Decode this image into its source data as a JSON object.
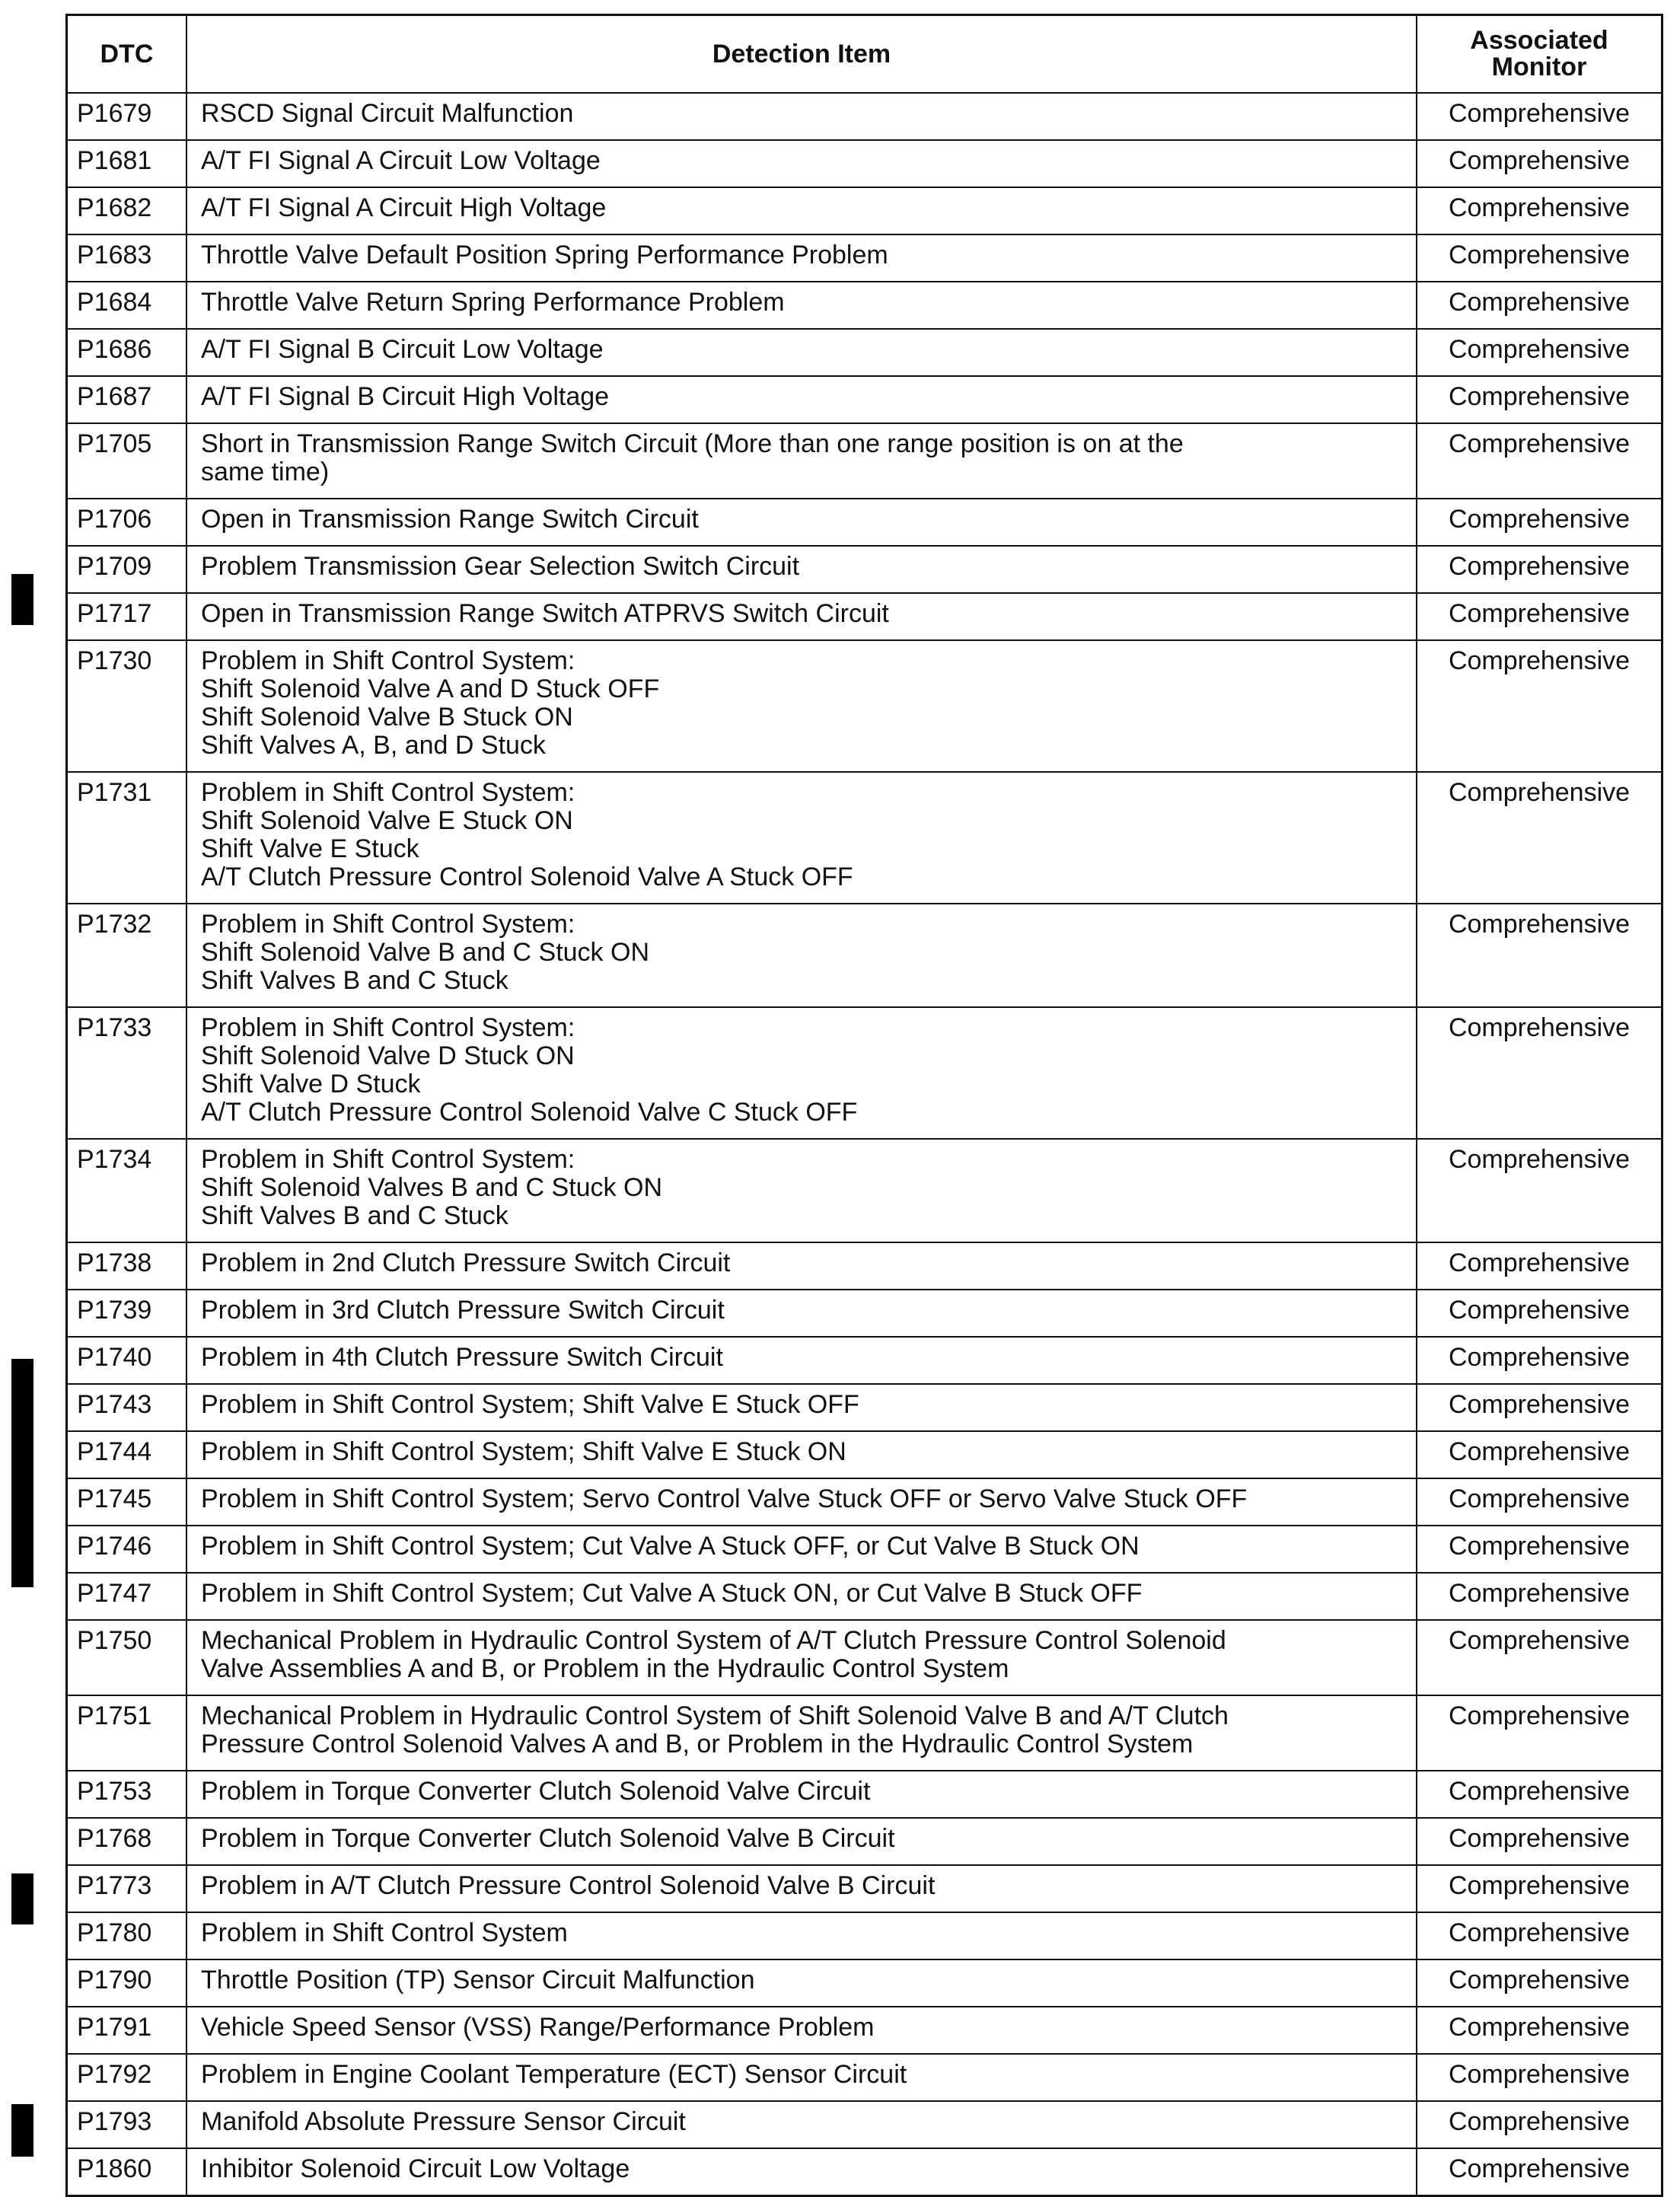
{
  "header": {
    "dtc": "DTC",
    "detection_item": "Detection Item",
    "monitor": "Associated Monitor"
  },
  "rows": [
    {
      "dtc": "P1679",
      "item": [
        "RSCD Signal Circuit Malfunction"
      ],
      "monitor": "Comprehensive"
    },
    {
      "dtc": "P1681",
      "item": [
        "A/T FI Signal A Circuit Low Voltage"
      ],
      "monitor": "Comprehensive"
    },
    {
      "dtc": "P1682",
      "item": [
        "A/T FI Signal A Circuit High Voltage"
      ],
      "monitor": "Comprehensive"
    },
    {
      "dtc": "P1683",
      "item": [
        "Throttle Valve Default Position Spring Performance Problem"
      ],
      "monitor": "Comprehensive"
    },
    {
      "dtc": "P1684",
      "item": [
        "Throttle Valve Return Spring Performance Problem"
      ],
      "monitor": "Comprehensive"
    },
    {
      "dtc": "P1686",
      "item": [
        "A/T FI Signal B Circuit Low Voltage"
      ],
      "monitor": "Comprehensive"
    },
    {
      "dtc": "P1687",
      "item": [
        "A/T FI Signal B Circuit High Voltage"
      ],
      "monitor": "Comprehensive"
    },
    {
      "dtc": "P1705",
      "item": [
        "Short in Transmission Range Switch Circuit (More than one range position is on at the",
        "same time)"
      ],
      "monitor": "Comprehensive"
    },
    {
      "dtc": "P1706",
      "item": [
        "Open in Transmission Range Switch Circuit"
      ],
      "monitor": "Comprehensive"
    },
    {
      "dtc": "P1709",
      "item": [
        "Problem Transmission Gear Selection Switch Circuit"
      ],
      "monitor": "Comprehensive"
    },
    {
      "dtc": "P1717",
      "item": [
        "Open in Transmission Range Switch ATPRVS Switch Circuit"
      ],
      "monitor": "Comprehensive"
    },
    {
      "dtc": "P1730",
      "item": [
        "Problem in Shift Control System:",
        "Shift Solenoid Valve A and D Stuck OFF",
        "Shift Solenoid Valve B Stuck ON",
        "Shift Valves A, B, and D Stuck"
      ],
      "monitor": "Comprehensive"
    },
    {
      "dtc": "P1731",
      "item": [
        "Problem in Shift Control System:",
        "Shift Solenoid Valve E Stuck ON",
        "Shift Valve E Stuck",
        "A/T Clutch Pressure Control Solenoid Valve A Stuck OFF"
      ],
      "monitor": "Comprehensive"
    },
    {
      "dtc": "P1732",
      "item": [
        "Problem in Shift Control System:",
        "Shift Solenoid Valve B and C Stuck ON",
        "Shift Valves B and C Stuck"
      ],
      "monitor": "Comprehensive"
    },
    {
      "dtc": "P1733",
      "item": [
        "Problem in Shift Control System:",
        "Shift Solenoid Valve D Stuck ON",
        "Shift Valve D Stuck",
        "A/T Clutch Pressure Control Solenoid Valve C Stuck OFF"
      ],
      "monitor": "Comprehensive"
    },
    {
      "dtc": "P1734",
      "item": [
        "Problem in Shift Control System:",
        "Shift Solenoid Valves B and C Stuck ON",
        "Shift Valves B and C Stuck"
      ],
      "monitor": "Comprehensive"
    },
    {
      "dtc": "P1738",
      "item": [
        "Problem in 2nd Clutch Pressure Switch Circuit"
      ],
      "monitor": "Comprehensive"
    },
    {
      "dtc": "P1739",
      "item": [
        "Problem in 3rd Clutch Pressure Switch Circuit"
      ],
      "monitor": "Comprehensive"
    },
    {
      "dtc": "P1740",
      "item": [
        "Problem in 4th Clutch Pressure Switch Circuit"
      ],
      "monitor": "Comprehensive"
    },
    {
      "dtc": "P1743",
      "item": [
        "Problem in Shift Control System; Shift Valve E Stuck OFF"
      ],
      "monitor": "Comprehensive"
    },
    {
      "dtc": "P1744",
      "item": [
        "Problem in Shift Control System; Shift Valve E Stuck ON"
      ],
      "monitor": "Comprehensive"
    },
    {
      "dtc": "P1745",
      "item": [
        "Problem in Shift Control System; Servo Control Valve Stuck OFF or Servo Valve Stuck OFF"
      ],
      "monitor": "Comprehensive"
    },
    {
      "dtc": "P1746",
      "item": [
        "Problem in Shift Control System; Cut Valve A Stuck OFF, or Cut Valve B Stuck ON"
      ],
      "monitor": "Comprehensive"
    },
    {
      "dtc": "P1747",
      "item": [
        "Problem in Shift Control System; Cut Valve A Stuck ON, or Cut Valve B Stuck OFF"
      ],
      "monitor": "Comprehensive"
    },
    {
      "dtc": "P1750",
      "item": [
        "Mechanical Problem in Hydraulic Control System of A/T Clutch Pressure Control Solenoid",
        "Valve Assemblies A and B, or Problem in the Hydraulic Control System"
      ],
      "monitor": "Comprehensive"
    },
    {
      "dtc": "P1751",
      "item": [
        "Mechanical Problem in Hydraulic Control System of Shift Solenoid Valve B and A/T Clutch",
        "Pressure Control Solenoid Valves A and B, or Problem in the Hydraulic Control System"
      ],
      "monitor": "Comprehensive"
    },
    {
      "dtc": "P1753",
      "item": [
        "Problem in Torque Converter Clutch Solenoid Valve Circuit"
      ],
      "monitor": "Comprehensive"
    },
    {
      "dtc": "P1768",
      "item": [
        "Problem in Torque Converter Clutch Solenoid Valve B Circuit"
      ],
      "monitor": "Comprehensive"
    },
    {
      "dtc": "P1773",
      "item": [
        "Problem in A/T Clutch Pressure Control Solenoid Valve B Circuit"
      ],
      "monitor": "Comprehensive"
    },
    {
      "dtc": "P1780",
      "item": [
        "Problem in Shift Control System"
      ],
      "monitor": "Comprehensive"
    },
    {
      "dtc": "P1790",
      "item": [
        "Throttle Position (TP) Sensor Circuit Malfunction"
      ],
      "monitor": "Comprehensive"
    },
    {
      "dtc": "P1791",
      "item": [
        "Vehicle Speed Sensor (VSS) Range/Performance Problem"
      ],
      "monitor": "Comprehensive"
    },
    {
      "dtc": "P1792",
      "item": [
        "Problem in Engine Coolant Temperature (ECT) Sensor Circuit"
      ],
      "monitor": "Comprehensive"
    },
    {
      "dtc": "P1793",
      "item": [
        "Manifold Absolute Pressure Sensor Circuit"
      ],
      "monitor": "Comprehensive"
    },
    {
      "dtc": "P1860",
      "item": [
        "Inhibitor Solenoid Circuit Low Voltage"
      ],
      "monitor": "Comprehensive"
    }
  ]
}
